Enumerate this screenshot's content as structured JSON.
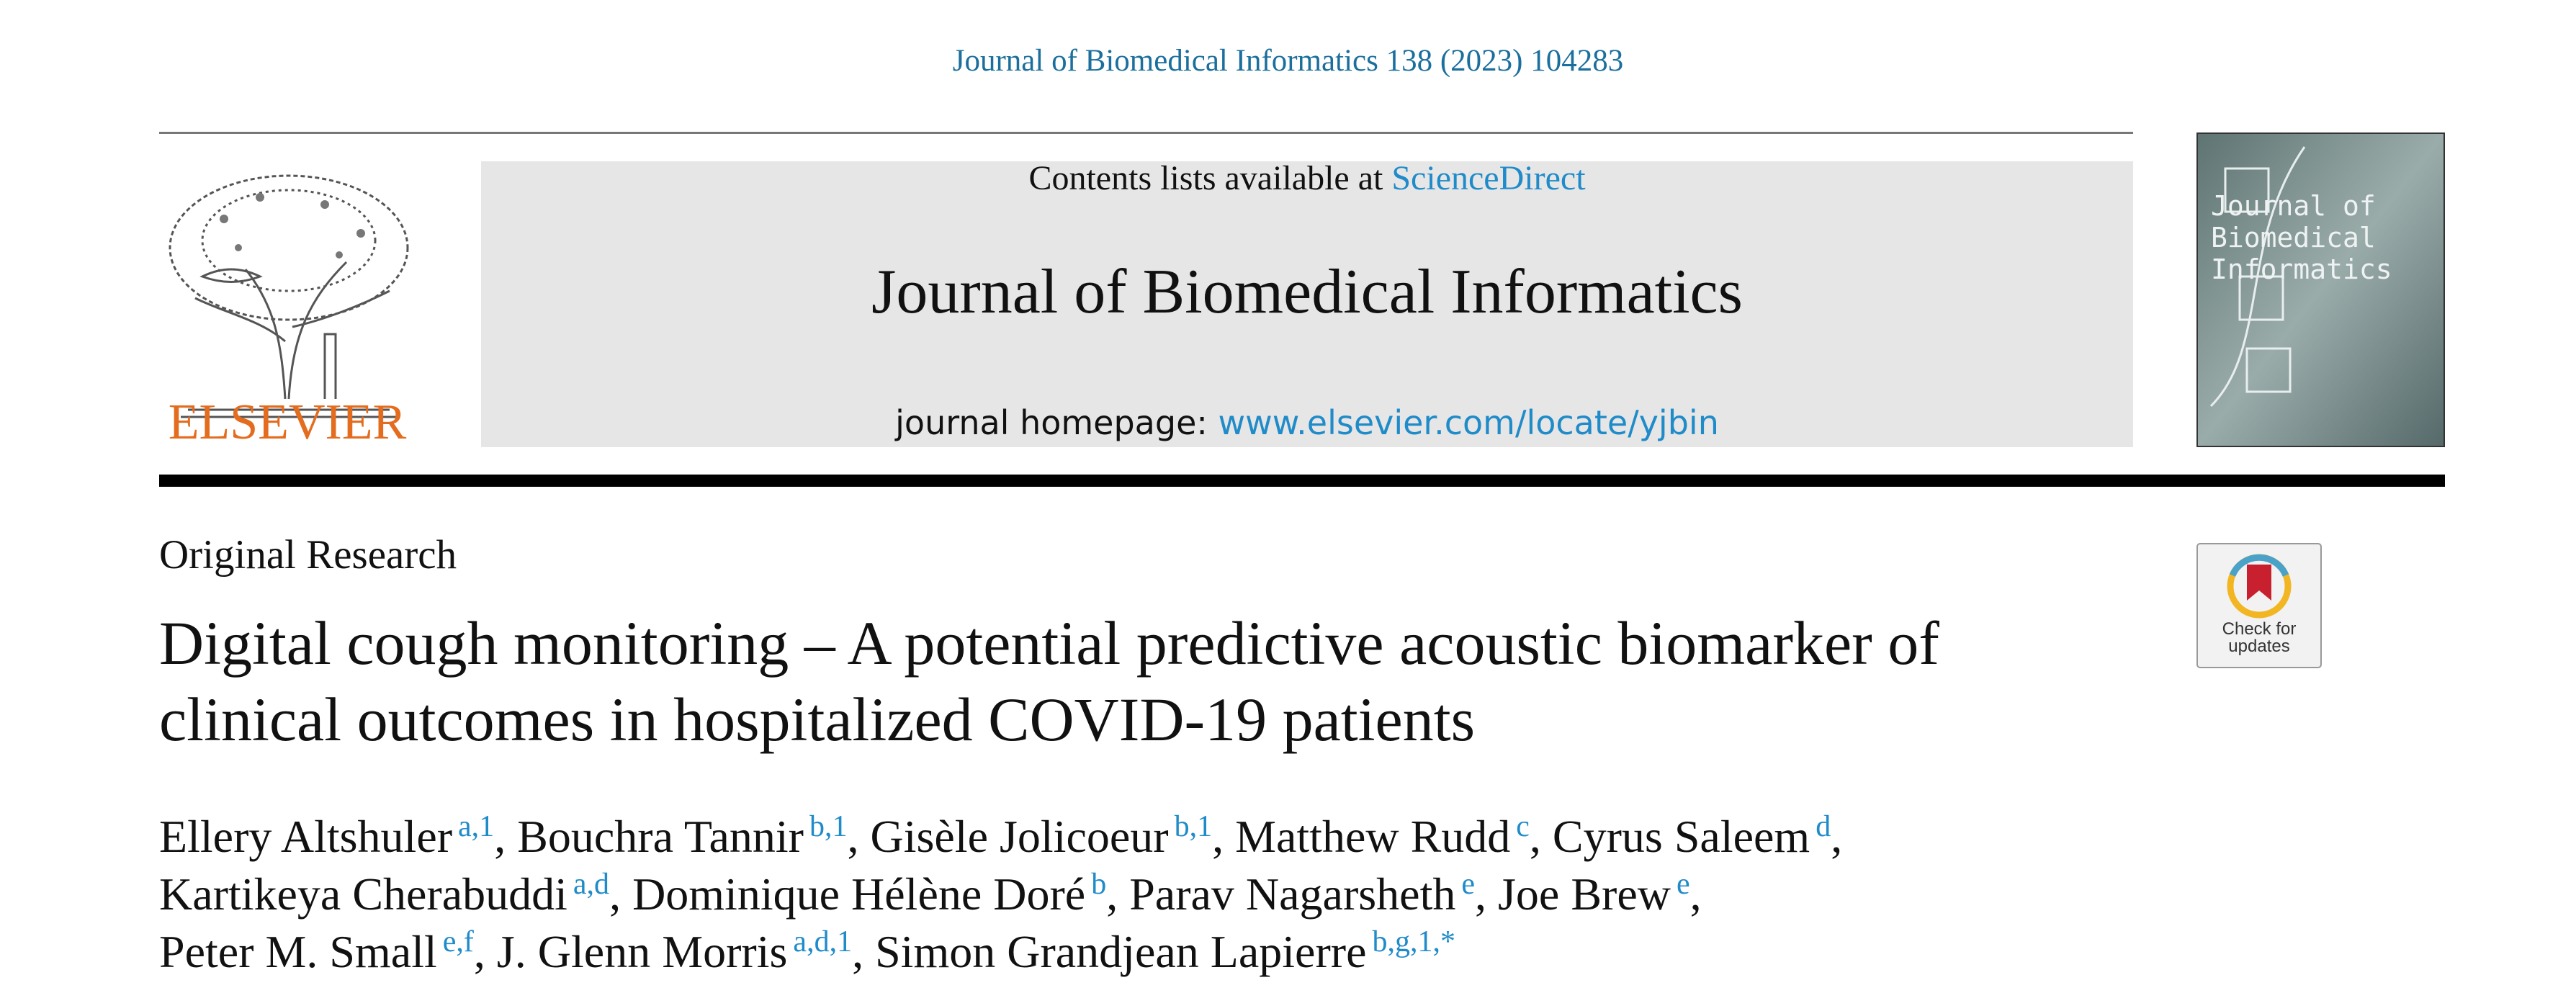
{
  "header": {
    "citation": "Journal of Biomedical Informatics 138 (2023) 104283",
    "publisher": "ELSEVIER",
    "contents_prefix": "Contents lists available at",
    "sciencedirect": "ScienceDirect",
    "journal_title": "Journal of Biomedical Informatics",
    "homepage_label": "journal homepage:",
    "homepage_url": "www.elsevier.com/locate/yjbin",
    "cover_title": "Journal of Biomedical Informatics"
  },
  "article": {
    "type": "Original Research",
    "title": "Digital cough monitoring – A potential predictive acoustic biomarker of clinical outcomes in hospitalized COVID-19 patients",
    "badge": "Check for updates",
    "author_lines": [
      [
        {
          "name": "Ellery Altshuler",
          "sup": "a,1",
          "sep": ","
        },
        {
          "name": "Bouchra Tannir",
          "sup": "b,1",
          "sep": ","
        },
        {
          "name": "Gisèle Jolicoeur",
          "sup": "b,1",
          "sep": ","
        },
        {
          "name": "Matthew Rudd",
          "sup": "c",
          "sep": ","
        },
        {
          "name": "Cyrus Saleem",
          "sup": "d",
          "sep": ","
        }
      ],
      [
        {
          "name": "Kartikeya Cherabuddi",
          "sup": "a,d",
          "sep": ","
        },
        {
          "name": "Dominique Hélène Doré",
          "sup": "b",
          "sep": ","
        },
        {
          "name": "Parav Nagarsheth",
          "sup": "e",
          "sep": ","
        },
        {
          "name": "Joe Brew",
          "sup": "e",
          "sep": ","
        }
      ],
      [
        {
          "name": "Peter M. Small",
          "sup": "e,f",
          "sep": ","
        },
        {
          "name": "J. Glenn Morris",
          "sup": "a,d,1",
          "sep": ","
        },
        {
          "name": "Simon Grandjean Lapierre",
          "sup": "b,g,1,*",
          "sep": ""
        }
      ]
    ]
  }
}
